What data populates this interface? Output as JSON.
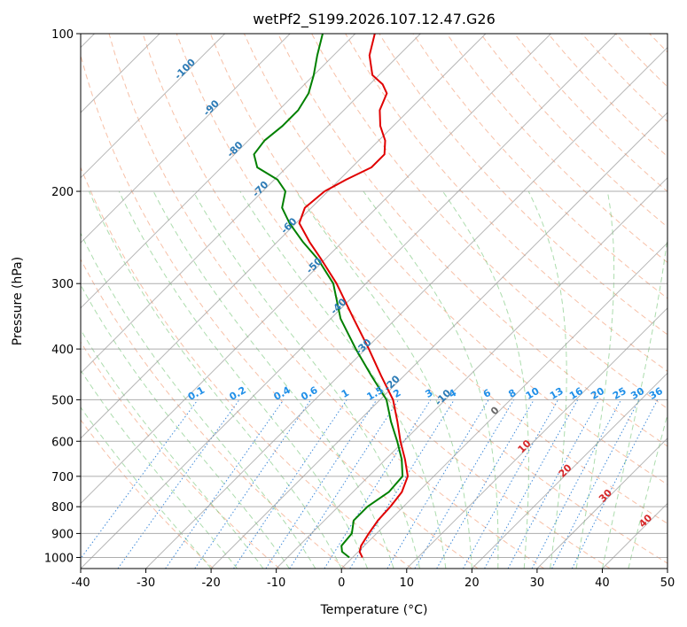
{
  "chart_data": {
    "type": "line",
    "title": "wetPf2_S199.2026.107.12.47.G26",
    "xlabel": "Temperature (°C)",
    "ylabel": "Pressure (hPa)",
    "xlim": [
      -40,
      50
    ],
    "ylim": [
      1050,
      100
    ],
    "y_scale": "log",
    "grid": true,
    "x_ticks": [
      "-40",
      "-30",
      "-20",
      "-10",
      "0",
      "10",
      "20",
      "30",
      "40",
      "50"
    ],
    "y_ticks": [
      "100",
      "200",
      "300",
      "400",
      "500",
      "600",
      "700",
      "800",
      "900",
      "1000"
    ],
    "isotherm_labels": [
      "-100",
      "-90",
      "-80",
      "-70",
      "-60",
      "-50",
      "-40",
      "-30",
      "-20",
      "-10"
    ],
    "mixing_ratio_labels": [
      "0.1",
      "0.2",
      "0.4",
      "0.6",
      "1",
      "1.5",
      "2",
      "3",
      "4",
      "6",
      "8",
      "10",
      "13",
      "16",
      "20",
      "25",
      "30",
      "36"
    ],
    "wet_adiabat_labels": [
      "0",
      "10",
      "20",
      "30",
      "40"
    ],
    "series": [
      {
        "color": "#e00000",
        "points": [
          {
            "p": 1000,
            "t": 1.5
          },
          {
            "p": 975,
            "t": 0.2
          },
          {
            "p": 950,
            "t": -0.5
          },
          {
            "p": 900,
            "t": -1.2
          },
          {
            "p": 850,
            "t": -1.8
          },
          {
            "p": 800,
            "t": -2.0
          },
          {
            "p": 750,
            "t": -2.5
          },
          {
            "p": 700,
            "t": -4.0
          },
          {
            "p": 650,
            "t": -7.0
          },
          {
            "p": 600,
            "t": -10.5
          },
          {
            "p": 550,
            "t": -14.0
          },
          {
            "p": 500,
            "t": -18.0
          },
          {
            "p": 450,
            "t": -23.5
          },
          {
            "p": 400,
            "t": -29.5
          },
          {
            "p": 350,
            "t": -36.5
          },
          {
            "p": 300,
            "t": -44.5
          },
          {
            "p": 270,
            "t": -50.5
          },
          {
            "p": 250,
            "t": -55.0
          },
          {
            "p": 230,
            "t": -59.5
          },
          {
            "p": 215,
            "t": -61.0
          },
          {
            "p": 200,
            "t": -60.5
          },
          {
            "p": 190,
            "t": -59.0
          },
          {
            "p": 180,
            "t": -57.0
          },
          {
            "p": 170,
            "t": -57.0
          },
          {
            "p": 160,
            "t": -59.0
          },
          {
            "p": 150,
            "t": -62.0
          },
          {
            "p": 140,
            "t": -64.5
          },
          {
            "p": 130,
            "t": -66.0
          },
          {
            "p": 125,
            "t": -68.0
          },
          {
            "p": 120,
            "t": -71.0
          },
          {
            "p": 110,
            "t": -74.5
          },
          {
            "p": 100,
            "t": -77.0
          }
        ]
      },
      {
        "color": "#008000",
        "points": [
          {
            "p": 1000,
            "t": -0.5
          },
          {
            "p": 975,
            "t": -2.5
          },
          {
            "p": 950,
            "t": -3.5
          },
          {
            "p": 900,
            "t": -3.8
          },
          {
            "p": 850,
            "t": -5.5
          },
          {
            "p": 800,
            "t": -5.5
          },
          {
            "p": 750,
            "t": -4.5
          },
          {
            "p": 700,
            "t": -4.8
          },
          {
            "p": 650,
            "t": -7.5
          },
          {
            "p": 600,
            "t": -11.0
          },
          {
            "p": 550,
            "t": -15.0
          },
          {
            "p": 500,
            "t": -19.0
          },
          {
            "p": 450,
            "t": -25.0
          },
          {
            "p": 400,
            "t": -31.5
          },
          {
            "p": 350,
            "t": -38.5
          },
          {
            "p": 300,
            "t": -45.0
          },
          {
            "p": 270,
            "t": -51.0
          },
          {
            "p": 250,
            "t": -56.0
          },
          {
            "p": 230,
            "t": -61.0
          },
          {
            "p": 215,
            "t": -64.5
          },
          {
            "p": 200,
            "t": -66.5
          },
          {
            "p": 190,
            "t": -69.5
          },
          {
            "p": 180,
            "t": -74.5
          },
          {
            "p": 170,
            "t": -77.0
          },
          {
            "p": 160,
            "t": -77.5
          },
          {
            "p": 150,
            "t": -77.0
          },
          {
            "p": 140,
            "t": -77.0
          },
          {
            "p": 130,
            "t": -78.0
          },
          {
            "p": 120,
            "t": -80.0
          },
          {
            "p": 110,
            "t": -82.5
          },
          {
            "p": 100,
            "t": -85.0
          }
        ]
      }
    ]
  }
}
